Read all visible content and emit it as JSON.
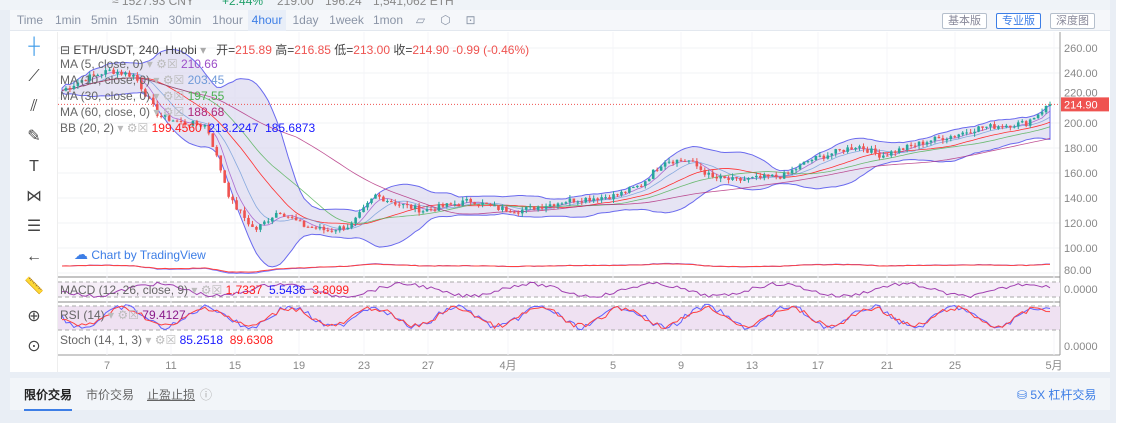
{
  "ticker": {
    "cny": "≈ 1527.93 CNY",
    "change": "+2.44%",
    "high": "219.00",
    "low": "196.24",
    "volume": "1,541,062 ETH"
  },
  "toolbar": {
    "intervals": [
      "Time",
      "1min",
      "5min",
      "15min",
      "30min",
      "1hour",
      "4hour",
      "1day",
      "1week",
      "1mon"
    ],
    "active": "4hour",
    "icons": [
      "indicator-icon",
      "settings-icon",
      "fullscreen-icon"
    ],
    "views": [
      "基本版",
      "专业版",
      "深度图"
    ],
    "active_view": "专业版"
  },
  "legend": {
    "symbol": "ETH/USDT, 240, Huobi",
    "ohlc": [
      {
        "k": "开=",
        "v": "215.89"
      },
      {
        "k": "高=",
        "v": "216.85"
      },
      {
        "k": "低=",
        "v": "213.00"
      },
      {
        "k": "收=",
        "v": "214.90"
      }
    ],
    "change": "-0.99 (-0.46%)",
    "ma": [
      {
        "label": "MA (5, close, 0)",
        "value": "210.66",
        "color": "#9c4fc8"
      },
      {
        "label": "MA (10, close, 0)",
        "value": "203.45",
        "color": "#6f9ad8"
      },
      {
        "label": "MA (30, close, 0)",
        "value": "197.55",
        "color": "#4caf50"
      },
      {
        "label": "MA (60, close, 0)",
        "value": "188.68",
        "color": "#b0287a"
      }
    ],
    "bb": {
      "label": "BB (20, 2)",
      "values": [
        "199.4560",
        "213.2247",
        "185.6873"
      ],
      "colors": [
        "#ff2020",
        "#1a1aff",
        "#1a1aff"
      ]
    },
    "macd": {
      "label": "MACD (12, 26, close, 9)",
      "values": [
        "1.7337",
        "5.5436",
        "3.8099"
      ],
      "colors": [
        "#ff2020",
        "#1a1aff",
        "#ff2020"
      ]
    },
    "rsi": {
      "label": "RSI (14)",
      "value": "79.4127",
      "color": "#8a1a8a"
    },
    "stoch": {
      "label": "Stoch (14, 1, 3)",
      "values": [
        "85.2518",
        "89.6308"
      ],
      "colors": [
        "#1a1aff",
        "#ff2020"
      ]
    }
  },
  "watermark": "Chart by TradingView",
  "price_axis": [
    "260.00",
    "240.00",
    "220.00",
    "200.00",
    "180.00",
    "160.00",
    "140.00",
    "120.00",
    "100.00",
    "80.00"
  ],
  "last_price": "214.90",
  "macd_axis": "0.0000",
  "stoch_axis": "0.0000",
  "chart_data": {
    "type": "candlestick",
    "ylim": [
      80,
      260
    ],
    "last": 214.9,
    "x_ticks": [
      "7",
      "11",
      "15",
      "19",
      "23",
      "27",
      "4月",
      "5",
      "9",
      "13",
      "17",
      "21",
      "25",
      "5月"
    ],
    "close_path": [
      226,
      236,
      242,
      238,
      206,
      200,
      198,
      138,
      114,
      130,
      118,
      114,
      118,
      142,
      135,
      130,
      134,
      138,
      132,
      130,
      134,
      138,
      140,
      142,
      150,
      170,
      170,
      156,
      154,
      156,
      158,
      170,
      176,
      182,
      174,
      180,
      186,
      190,
      196,
      198,
      200,
      214.9
    ]
  },
  "left_tools": [
    "crosshair-icon",
    "trendline-icon",
    "pitchfork-icon",
    "brush-icon",
    "text-icon",
    "pattern-icon",
    "fib-icon",
    "back-arrow-icon",
    "ruler-icon",
    "zoom-in-icon",
    "magnet-icon"
  ],
  "bottom": {
    "tabs": [
      "限价交易",
      "市价交易",
      "止盈止损"
    ],
    "active": "限价交易",
    "leverage": "5X 杠杆交易"
  },
  "colors": {
    "up": "#26a69a",
    "down": "#ef5350",
    "accent": "#3d7ee6",
    "bb_fill": "#dcd8f0"
  }
}
